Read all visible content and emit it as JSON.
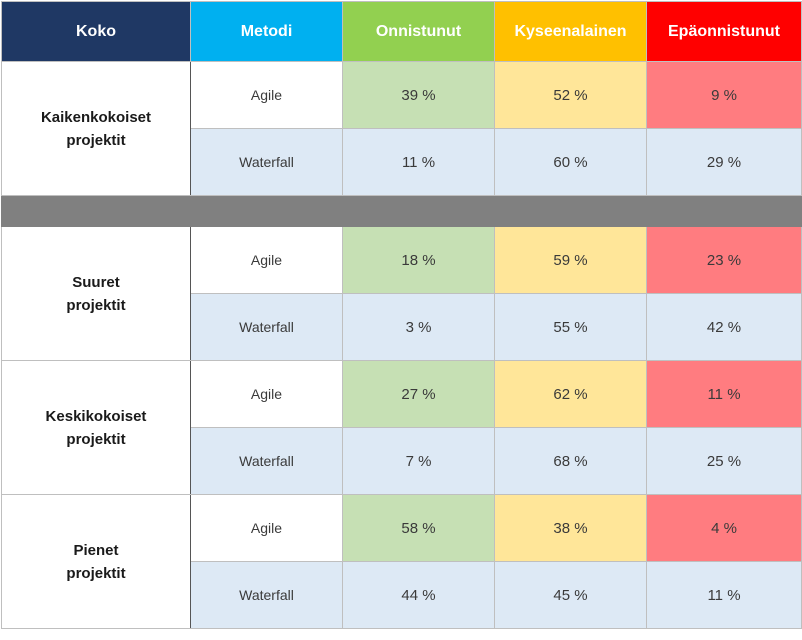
{
  "headers": {
    "koko": "Koko",
    "metodi": "Metodi",
    "onnistunut": "Onnistunut",
    "kyseenalainen": "Kyseenalainen",
    "epaonnistunut": "Epäonnistunut"
  },
  "colors": {
    "header_koko": "#1f3864",
    "header_metodi": "#00b0f0",
    "header_onnistunut": "#92d050",
    "header_kyseenalainen": "#ffc000",
    "header_epaonnistunut": "#ff0000",
    "cell_onnistunut": "#c6e0b4",
    "cell_kyseenalainen": "#ffe699",
    "cell_epaonnistunut": "#ff7c80",
    "row_waterfall": "#dde9f5",
    "separator": "#808080"
  },
  "groups": [
    {
      "size_line1": "Kaikenkokoiset",
      "size_line2": "projektit",
      "rows": [
        {
          "method": "Agile",
          "onnistunut": "39 %",
          "kyseenalainen": "52 %",
          "epaonnistunut": "9 %"
        },
        {
          "method": "Waterfall",
          "onnistunut": "11 %",
          "kyseenalainen": "60 %",
          "epaonnistunut": "29 %"
        }
      ]
    },
    {
      "size_line1": "Suuret",
      "size_line2": "projektit",
      "rows": [
        {
          "method": "Agile",
          "onnistunut": "18 %",
          "kyseenalainen": "59 %",
          "epaonnistunut": "23 %"
        },
        {
          "method": "Waterfall",
          "onnistunut": "3 %",
          "kyseenalainen": "55 %",
          "epaonnistunut": "42 %"
        }
      ]
    },
    {
      "size_line1": "Keskikokoiset",
      "size_line2": "projektit",
      "rows": [
        {
          "method": "Agile",
          "onnistunut": "27 %",
          "kyseenalainen": "62 %",
          "epaonnistunut": "11 %"
        },
        {
          "method": "Waterfall",
          "onnistunut": "7 %",
          "kyseenalainen": "68 %",
          "epaonnistunut": "25 %"
        }
      ]
    },
    {
      "size_line1": "Pienet",
      "size_line2": "projektit",
      "rows": [
        {
          "method": "Agile",
          "onnistunut": "58 %",
          "kyseenalainen": "38 %",
          "epaonnistunut": "4 %"
        },
        {
          "method": "Waterfall",
          "onnistunut": "44 %",
          "kyseenalainen": "45 %",
          "epaonnistunut": "11 %"
        }
      ]
    }
  ]
}
